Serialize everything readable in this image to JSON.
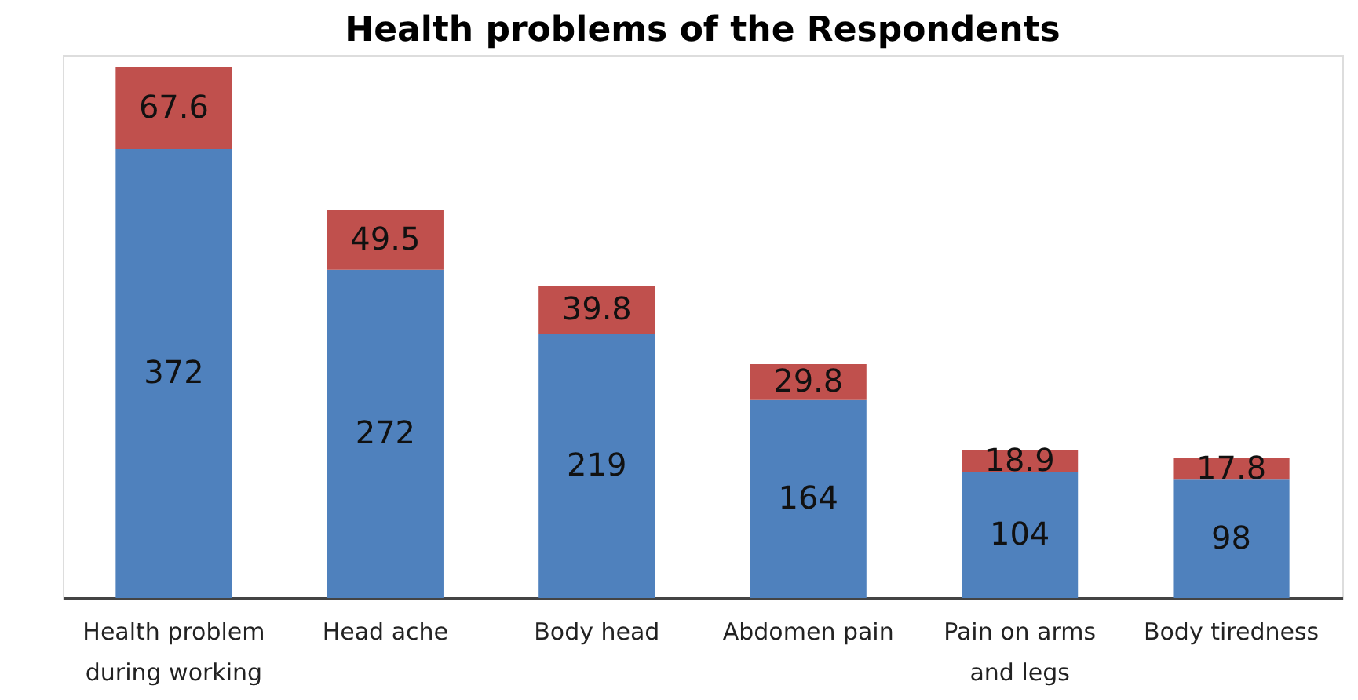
{
  "chart_data": {
    "type": "bar",
    "title": "Health problems of the Respondents",
    "stacked": true,
    "data_labels": true,
    "categories": [
      "Health problem during working",
      "Head ache",
      "Body head",
      "Abdomen pain",
      "Pain on arms and legs",
      "Body tiredness"
    ],
    "series": [
      {
        "color": "#4f81bd",
        "values": [
          372,
          272,
          219,
          164,
          104,
          98
        ]
      },
      {
        "color": "#c0504d",
        "values": [
          67.6,
          49.5,
          39.8,
          29.8,
          18.9,
          17.8
        ]
      }
    ]
  }
}
